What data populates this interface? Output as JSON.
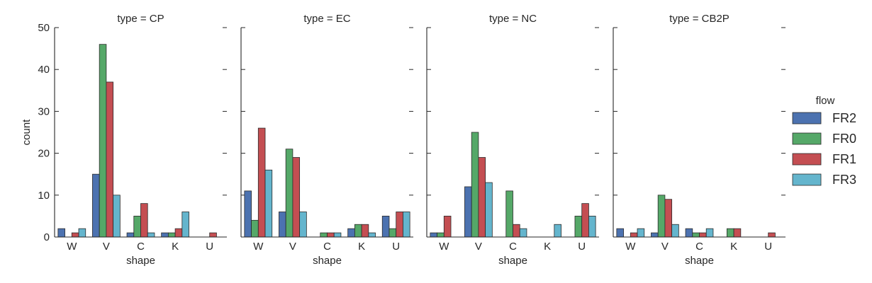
{
  "chart_data": {
    "type": "bar",
    "x_tick_labels": [
      "W",
      "V",
      "C",
      "K",
      "U"
    ],
    "xlabel": "shape",
    "ylabel": "count",
    "ylim": [
      0,
      50
    ],
    "y_ticks": [
      0,
      10,
      20,
      30,
      40,
      50
    ],
    "grid": false,
    "legend": {
      "title": "flow",
      "placement": "right",
      "entries": [
        {
          "name": "FR2",
          "color": "#4c72b0"
        },
        {
          "name": "FR0",
          "color": "#55a868"
        },
        {
          "name": "FR1",
          "color": "#c44e52"
        },
        {
          "name": "FR3",
          "color": "#64b5cd"
        }
      ]
    },
    "facets": [
      {
        "title": "type = CP",
        "series": [
          {
            "name": "FR2",
            "values": [
              2,
              15,
              1,
              1,
              0
            ]
          },
          {
            "name": "FR0",
            "values": [
              0,
              46,
              5,
              1,
              0
            ]
          },
          {
            "name": "FR1",
            "values": [
              1,
              37,
              8,
              2,
              1
            ]
          },
          {
            "name": "FR3",
            "values": [
              2,
              10,
              1,
              6,
              0
            ]
          }
        ]
      },
      {
        "title": "type = EC",
        "series": [
          {
            "name": "FR2",
            "values": [
              11,
              6,
              0,
              2,
              5
            ]
          },
          {
            "name": "FR0",
            "values": [
              4,
              21,
              1,
              3,
              2
            ]
          },
          {
            "name": "FR1",
            "values": [
              26,
              19,
              1,
              3,
              6
            ]
          },
          {
            "name": "FR3",
            "values": [
              16,
              6,
              1,
              1,
              6
            ]
          }
        ]
      },
      {
        "title": "type = NC",
        "series": [
          {
            "name": "FR2",
            "values": [
              1,
              12,
              0,
              0,
              0
            ]
          },
          {
            "name": "FR0",
            "values": [
              1,
              25,
              11,
              0,
              5
            ]
          },
          {
            "name": "FR1",
            "values": [
              5,
              19,
              3,
              0,
              8
            ]
          },
          {
            "name": "FR3",
            "values": [
              0,
              13,
              2,
              3,
              5
            ]
          }
        ]
      },
      {
        "title": "type = CB2P",
        "series": [
          {
            "name": "FR2",
            "values": [
              2,
              1,
              2,
              0,
              0
            ]
          },
          {
            "name": "FR0",
            "values": [
              0,
              10,
              1,
              2,
              0
            ]
          },
          {
            "name": "FR1",
            "values": [
              1,
              9,
              1,
              2,
              1
            ]
          },
          {
            "name": "FR3",
            "values": [
              2,
              3,
              2,
              0,
              0
            ]
          }
        ]
      }
    ]
  }
}
